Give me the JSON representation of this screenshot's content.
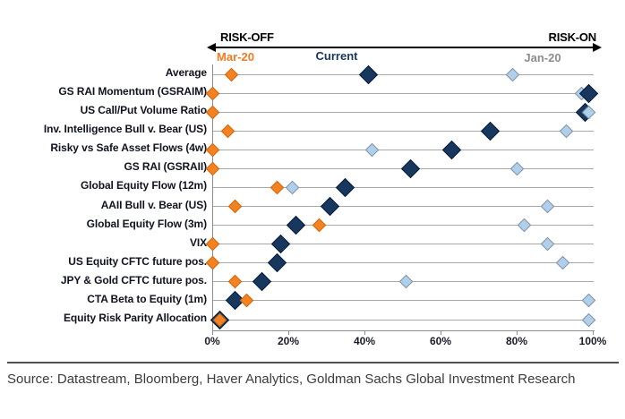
{
  "chart_data": {
    "type": "scatter",
    "title": "",
    "header": {
      "risk_off": "RISK-OFF",
      "risk_on": "RISK-ON"
    },
    "x_axis": {
      "min": 0,
      "max": 100,
      "ticks": [
        "0%",
        "20%",
        "40%",
        "60%",
        "80%",
        "100%"
      ],
      "grid": "horizontal-per-category"
    },
    "legend": [
      {
        "id": "mar20",
        "label": "Mar-20",
        "label_color": "#f47b20",
        "position": "above-first-row-point"
      },
      {
        "id": "current",
        "label": "Current",
        "label_color": "#17375e",
        "position": "above-first-row-point"
      },
      {
        "id": "jan20",
        "label": "Jan-20",
        "label_color": "#8c8c8c",
        "position": "above-first-row-point"
      }
    ],
    "series_styles": {
      "mar20": {
        "fill": "#f58220",
        "border": "#c96a12",
        "size": 11
      },
      "current": {
        "fill": "#17375e",
        "border": "#0a1e38",
        "size": 15
      },
      "jan20": {
        "fill": "#aed0ec",
        "border": "#85909c",
        "size": 11
      }
    },
    "rows": [
      {
        "label": "Average",
        "points": [
          {
            "s": "mar20",
            "v": 5
          },
          {
            "s": "current",
            "v": 41
          },
          {
            "s": "jan20",
            "v": 79
          }
        ]
      },
      {
        "label": "GS RAI Momentum (GSRAIM)",
        "points": [
          {
            "s": "mar20",
            "v": 0
          },
          {
            "s": "jan20",
            "v": 97
          },
          {
            "s": "current",
            "v": 99
          }
        ]
      },
      {
        "label": "US Call/Put Volume Ratio",
        "points": [
          {
            "s": "mar20",
            "v": 0
          },
          {
            "s": "current",
            "v": 98
          },
          {
            "s": "jan20",
            "v": 99
          }
        ]
      },
      {
        "label": "Inv. Intelligence Bull v. Bear (US)",
        "points": [
          {
            "s": "mar20",
            "v": 4
          },
          {
            "s": "current",
            "v": 73
          },
          {
            "s": "jan20",
            "v": 93
          }
        ]
      },
      {
        "label": "Risky vs Safe Asset Flows (4w)",
        "points": [
          {
            "s": "mar20",
            "v": 0
          },
          {
            "s": "jan20",
            "v": 42
          },
          {
            "s": "current",
            "v": 63
          }
        ]
      },
      {
        "label": "GS RAI (GSRAII)",
        "points": [
          {
            "s": "mar20",
            "v": 0
          },
          {
            "s": "current",
            "v": 52
          },
          {
            "s": "jan20",
            "v": 80
          }
        ]
      },
      {
        "label": "Global Equity Flow (12m)",
        "points": [
          {
            "s": "mar20",
            "v": 17
          },
          {
            "s": "jan20",
            "v": 21
          },
          {
            "s": "current",
            "v": 35
          }
        ]
      },
      {
        "label": "AAII Bull v. Bear (US)",
        "points": [
          {
            "s": "mar20",
            "v": 6
          },
          {
            "s": "current",
            "v": 31
          },
          {
            "s": "jan20",
            "v": 88
          }
        ]
      },
      {
        "label": "Global Equity Flow (3m)",
        "points": [
          {
            "s": "current",
            "v": 22
          },
          {
            "s": "mar20",
            "v": 28
          },
          {
            "s": "jan20",
            "v": 82
          }
        ]
      },
      {
        "label": "VIX",
        "points": [
          {
            "s": "mar20",
            "v": 0
          },
          {
            "s": "current",
            "v": 18
          },
          {
            "s": "jan20",
            "v": 88
          }
        ]
      },
      {
        "label": "US Equity CFTC future pos.",
        "points": [
          {
            "s": "mar20",
            "v": 0
          },
          {
            "s": "current",
            "v": 17
          },
          {
            "s": "jan20",
            "v": 92
          }
        ]
      },
      {
        "label": "JPY & Gold CFTC future pos.",
        "points": [
          {
            "s": "mar20",
            "v": 6
          },
          {
            "s": "current",
            "v": 13
          },
          {
            "s": "jan20",
            "v": 51
          }
        ]
      },
      {
        "label": "CTA Beta to Equity (1m)",
        "points": [
          {
            "s": "current",
            "v": 6
          },
          {
            "s": "mar20",
            "v": 9
          },
          {
            "s": "jan20",
            "v": 99
          }
        ]
      },
      {
        "label": "Equity Risk Parity Allocation",
        "points": [
          {
            "s": "current",
            "v": 2
          },
          {
            "s": "mar20",
            "v": 2
          },
          {
            "s": "jan20",
            "v": 99
          }
        ]
      }
    ]
  },
  "footer": {
    "source": "Source: Datastream, Bloomberg, Haver Analytics, Goldman Sachs Global Investment Research"
  },
  "colors": {
    "gridline": "#a8a8a8",
    "axis": "#8c8c8c",
    "arrow": "#000000",
    "source_text": "#3c3c3c"
  }
}
